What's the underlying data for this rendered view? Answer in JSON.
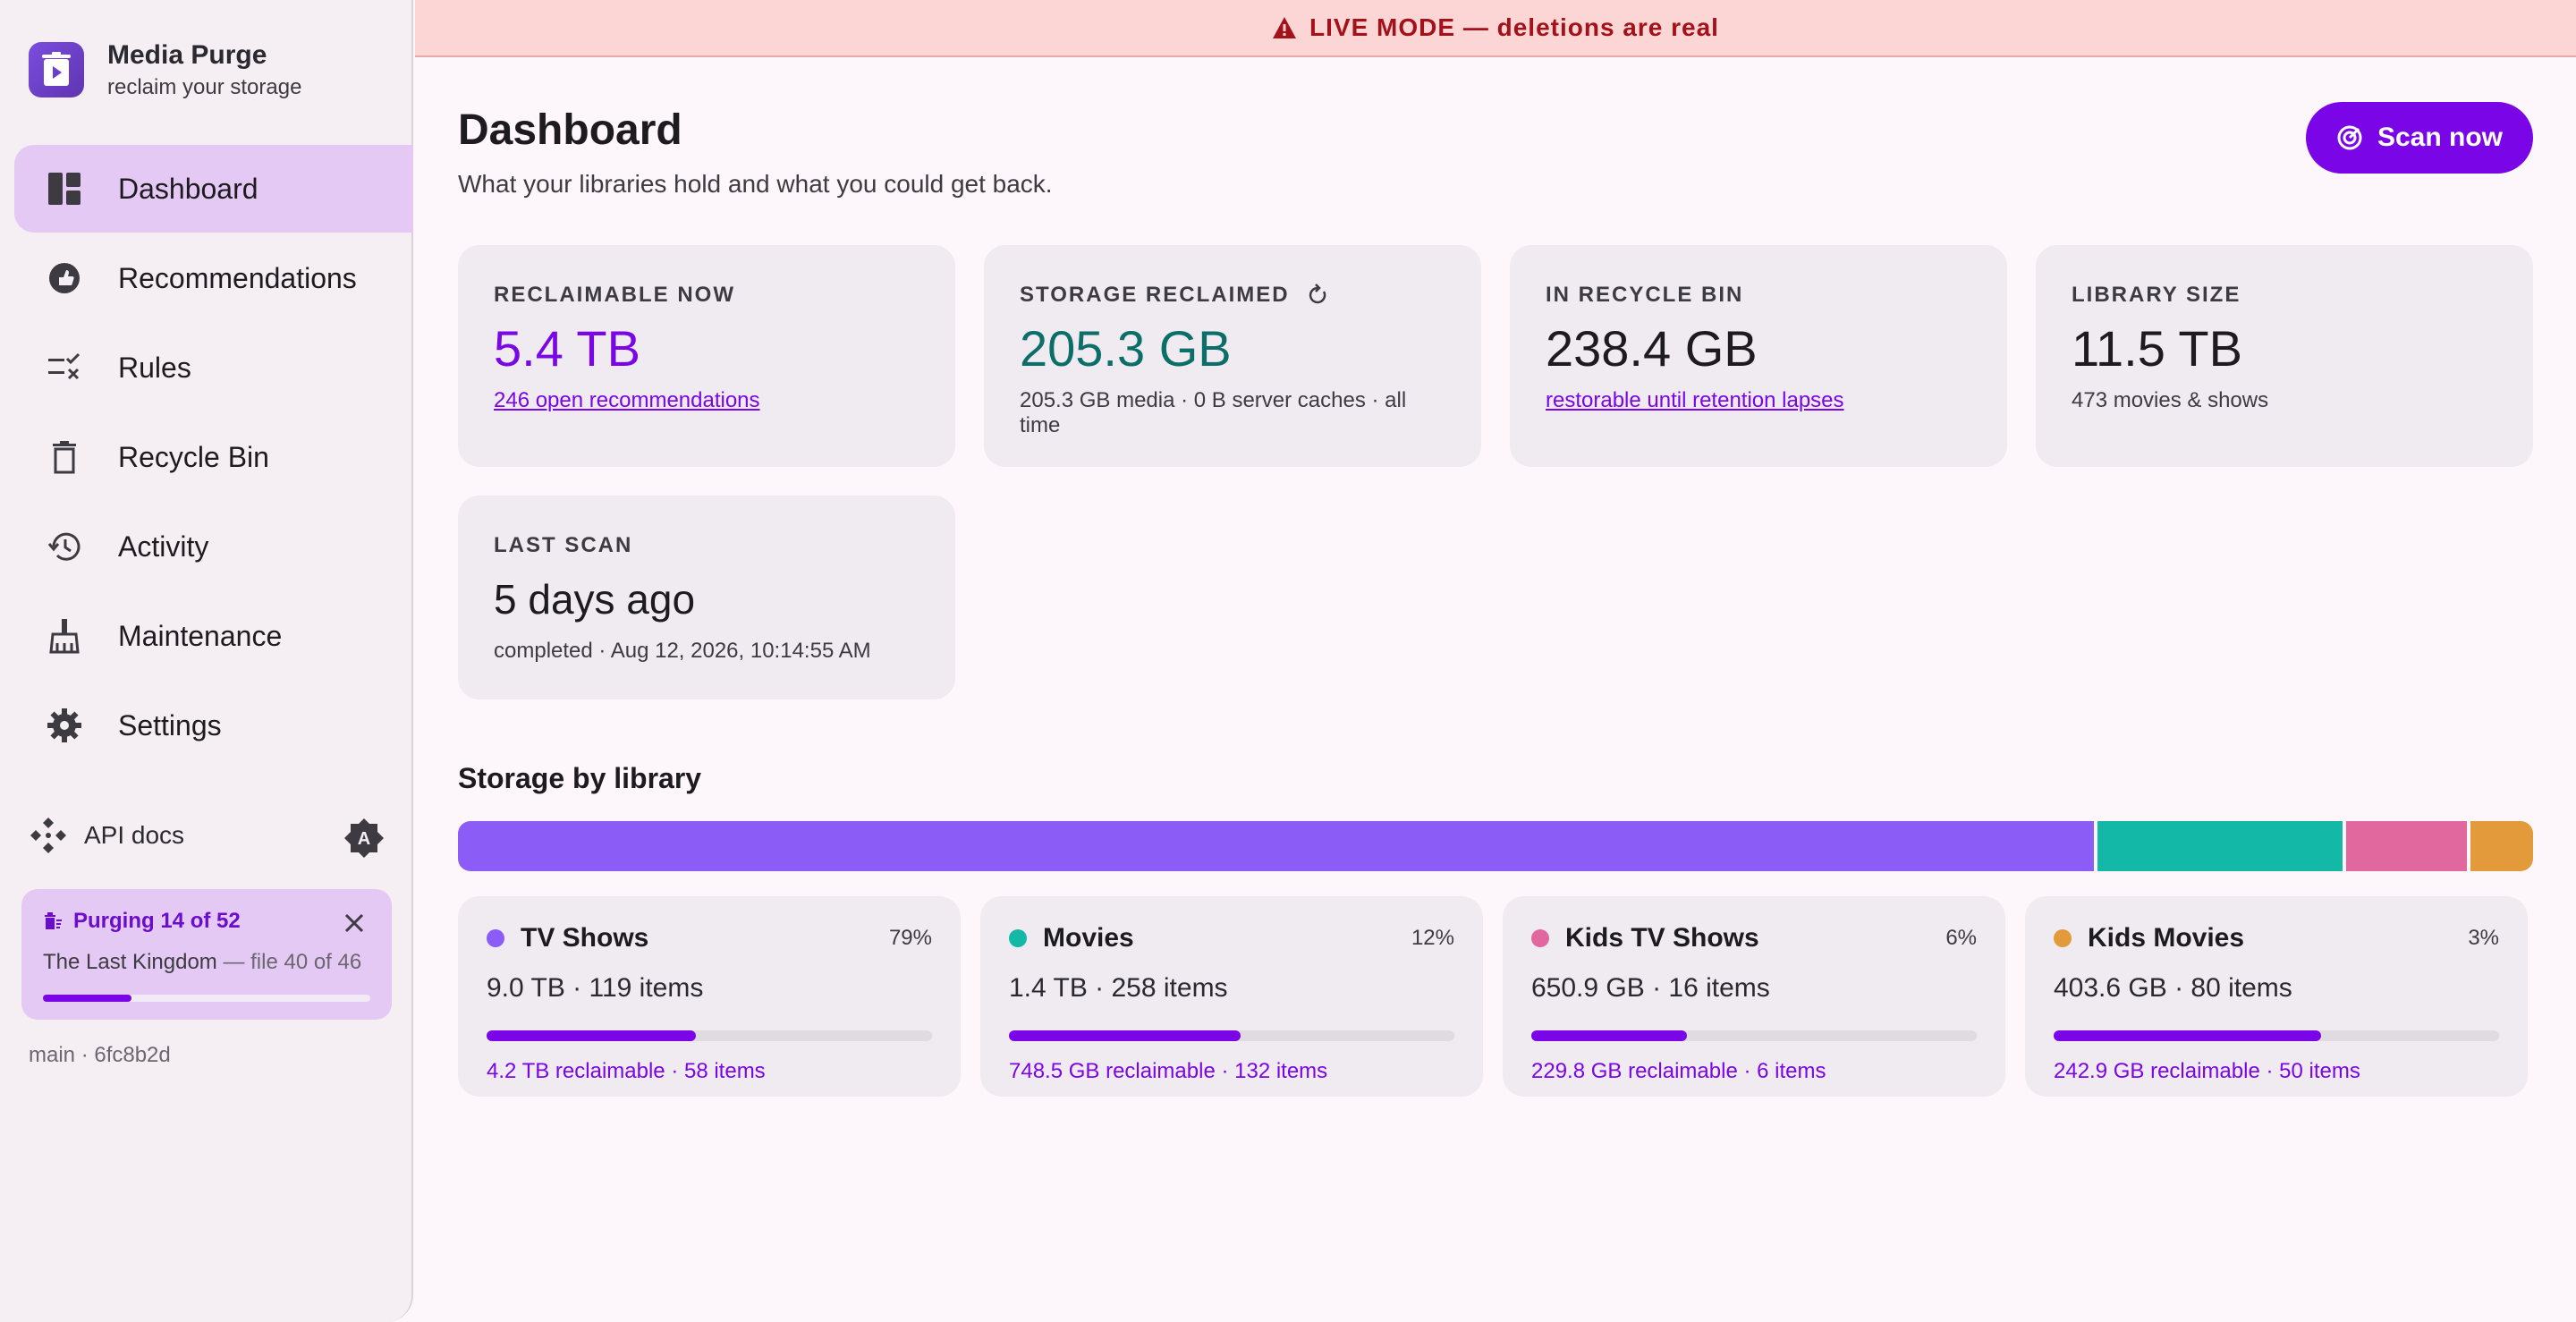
{
  "banner": {
    "text": "LIVE MODE — deletions are real"
  },
  "brand": {
    "name": "Media Purge",
    "tagline": "reclaim your storage"
  },
  "nav": [
    {
      "label": "Dashboard",
      "icon": "dashboard-icon",
      "active": true
    },
    {
      "label": "Recommendations",
      "icon": "recommendations-icon"
    },
    {
      "label": "Rules",
      "icon": "rules-icon"
    },
    {
      "label": "Recycle Bin",
      "icon": "trash-icon"
    },
    {
      "label": "Activity",
      "icon": "history-icon"
    },
    {
      "label": "Maintenance",
      "icon": "broom-icon"
    },
    {
      "label": "Settings",
      "icon": "gear-icon"
    }
  ],
  "api_docs": {
    "label": "API docs"
  },
  "purge": {
    "title": "Purging 14 of 52",
    "file_name": "The Last Kingdom",
    "file_progress": "— file 40 of 46",
    "progress_fraction": 0.27
  },
  "version": "main · 6fc8b2d",
  "header": {
    "title": "Dashboard",
    "subtitle": "What your libraries hold and what you could get back.",
    "scan_label": "Scan now"
  },
  "stats": {
    "reclaimable": {
      "label": "RECLAIMABLE NOW",
      "value": "5.4 TB",
      "link": "246 open recommendations"
    },
    "reclaimed": {
      "label": "STORAGE RECLAIMED",
      "value": "205.3 GB",
      "sub": "205.3 GB media · 0 B server caches · all time"
    },
    "recycle": {
      "label": "IN RECYCLE BIN",
      "value": "238.4 GB",
      "link": "restorable until retention lapses"
    },
    "library": {
      "label": "LIBRARY SIZE",
      "value": "11.5 TB",
      "sub": "473 movies & shows"
    },
    "last_scan": {
      "label": "LAST SCAN",
      "value": "5 days ago",
      "sub": "completed · Aug 12, 2026, 10:14:55 AM"
    }
  },
  "storage": {
    "title": "Storage by library",
    "libraries": [
      {
        "name": "TV Shows",
        "pct": "79%",
        "share": 79,
        "size": "9.0 TB · 119 items",
        "reclaimable": "4.2 TB reclaimable · 58 items",
        "reclaim_fraction": 0.47,
        "color": "#8b5cf6"
      },
      {
        "name": "Movies",
        "pct": "12%",
        "share": 12,
        "size": "1.4 TB · 258 items",
        "reclaimable": "748.5 GB reclaimable · 132 items",
        "reclaim_fraction": 0.52,
        "color": "#14b8a6"
      },
      {
        "name": "Kids TV Shows",
        "pct": "6%",
        "share": 6,
        "size": "650.9 GB · 16 items",
        "reclaimable": "229.8 GB reclaimable · 6 items",
        "reclaim_fraction": 0.35,
        "color": "#e0689e"
      },
      {
        "name": "Kids Movies",
        "pct": "3%",
        "share": 3,
        "size": "403.6 GB · 80 items",
        "reclaimable": "242.9 GB reclaimable · 50 items",
        "reclaim_fraction": 0.6,
        "color": "#e39a3b"
      }
    ]
  }
}
